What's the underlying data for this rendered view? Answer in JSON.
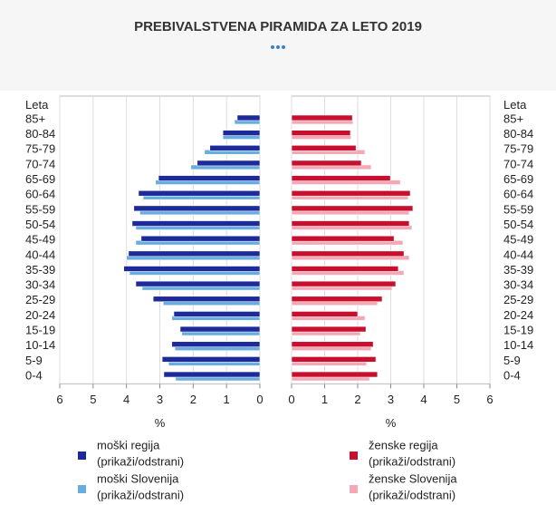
{
  "title": "PREBIVALSTVENA PIRAMIDA ZA LETO 2019",
  "chart_data": [
    {
      "type": "bar",
      "orientation": "horizontal",
      "x_reversed": true,
      "ylabel": "Leta",
      "xlabel": "%",
      "categories": [
        "85+",
        "80-84",
        "75-79",
        "70-74",
        "65-69",
        "60-64",
        "55-59",
        "50-54",
        "45-49",
        "40-44",
        "35-39",
        "30-34",
        "25-29",
        "20-24",
        "15-19",
        "10-14",
        "5-9",
        "0-4"
      ],
      "xlim": [
        0,
        6
      ],
      "xticks": [
        0,
        1,
        2,
        3,
        4,
        5,
        6
      ],
      "grid": true,
      "series": [
        {
          "name": "moški regija",
          "toggle_label": "(prikaži/odstrani)",
          "color": "#1c2a9a",
          "values": [
            0.68,
            1.11,
            1.5,
            1.88,
            3.04,
            3.64,
            3.78,
            3.83,
            3.56,
            3.94,
            4.08,
            3.72,
            3.2,
            2.58,
            2.39,
            2.64,
            2.93,
            2.88
          ]
        },
        {
          "name": "moški Slovenija",
          "toggle_label": "(prikaži/odstrani)",
          "color": "#68addf",
          "values": [
            0.76,
            1.11,
            1.66,
            2.07,
            3.13,
            3.5,
            3.6,
            3.72,
            3.72,
            4.0,
            3.91,
            3.53,
            2.9,
            2.64,
            2.34,
            2.55,
            2.74,
            2.53
          ]
        }
      ]
    },
    {
      "type": "bar",
      "orientation": "horizontal",
      "x_reversed": false,
      "ylabel": "Leta",
      "xlabel": "%",
      "categories": [
        "85+",
        "80-84",
        "75-79",
        "70-74",
        "65-69",
        "60-64",
        "55-59",
        "50-54",
        "45-49",
        "40-44",
        "35-39",
        "30-34",
        "25-29",
        "20-24",
        "15-19",
        "10-14",
        "5-9",
        "0-4"
      ],
      "xlim": [
        0,
        6
      ],
      "xticks": [
        0,
        1,
        2,
        3,
        4,
        5,
        6
      ],
      "grid": true,
      "series": [
        {
          "name": "ženske regija",
          "toggle_label": "(prikaži/odstrani)",
          "color": "#c8102e",
          "values": [
            1.84,
            1.78,
            1.95,
            2.11,
            2.99,
            3.59,
            3.67,
            3.56,
            3.1,
            3.4,
            3.23,
            3.15,
            2.74,
            2.0,
            2.25,
            2.47,
            2.55,
            2.6
          ]
        },
        {
          "name": "ženske Slovenija",
          "toggle_label": "(prikaži/odstrani)",
          "color": "#f4a7b5",
          "values": [
            1.86,
            1.8,
            2.22,
            2.41,
            3.29,
            3.53,
            3.56,
            3.64,
            3.37,
            3.56,
            3.4,
            3.04,
            2.6,
            2.22,
            2.08,
            2.41,
            2.27,
            2.36
          ]
        }
      ]
    }
  ]
}
